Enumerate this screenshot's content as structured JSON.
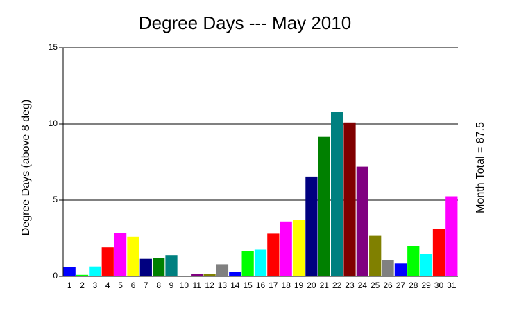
{
  "chart_data": {
    "type": "bar",
    "title": "Degree Days --- May 2010",
    "y_label": "Degree Days (above 8 deg)",
    "annotation": "Month Total = 87.5",
    "categories": [
      "1",
      "2",
      "3",
      "4",
      "5",
      "6",
      "7",
      "8",
      "9",
      "10",
      "11",
      "12",
      "13",
      "14",
      "15",
      "16",
      "17",
      "18",
      "19",
      "20",
      "21",
      "22",
      "23",
      "24",
      "25",
      "26",
      "27",
      "28",
      "29",
      "30",
      "31"
    ],
    "values": [
      0.6,
      0.1,
      0.65,
      1.9,
      2.85,
      2.6,
      1.15,
      1.2,
      1.4,
      0,
      0.15,
      0.15,
      0.8,
      0.3,
      1.65,
      1.75,
      2.8,
      3.6,
      3.7,
      6.55,
      9.15,
      10.8,
      10.1,
      7.2,
      2.7,
      1.05,
      0.85,
      2.0,
      1.5,
      3.1,
      5.25
    ],
    "colors": [
      "#0000ff",
      "#00ff00",
      "#00ffff",
      "#ff0000",
      "#ff00ff",
      "#ffff00",
      "#000080",
      "#008000",
      "#008080",
      "#800000",
      "#800080",
      "#808000",
      "#808080",
      "#0000ff",
      "#00ff00",
      "#00ffff",
      "#ff0000",
      "#ff00ff",
      "#ffff00",
      "#000080",
      "#008000",
      "#008080",
      "#800000",
      "#800080",
      "#808000",
      "#808080",
      "#0000ff",
      "#00ff00",
      "#00ffff",
      "#ff0000",
      "#ff00ff"
    ],
    "ylim": [
      0,
      15
    ],
    "yticks": [
      0,
      5,
      10,
      15
    ],
    "grid": true
  }
}
